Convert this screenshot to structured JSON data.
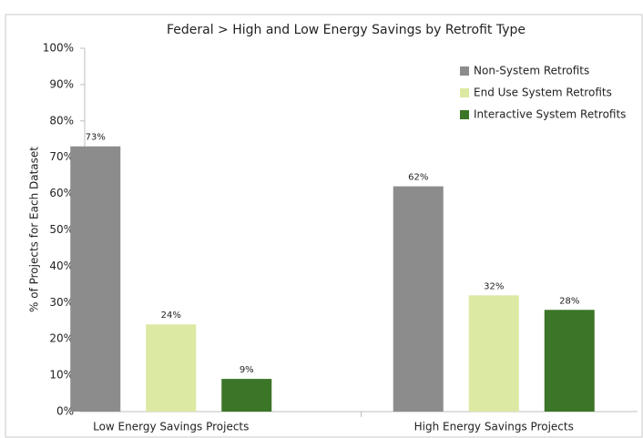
{
  "chart_data": {
    "type": "bar",
    "title": "Federal > High and Low Energy Savings by Retrofit Type",
    "y_label": "% of Projects for Each Dataset",
    "categories": [
      "Low Energy Savings Projects",
      "High Energy Savings Projects"
    ],
    "series": [
      {
        "name": "Non-System Retrofits",
        "color": "#8c8c8c",
        "values": [
          73,
          62
        ],
        "value_labels": [
          "73%",
          "62%"
        ]
      },
      {
        "name": "End Use System Retrofits",
        "color": "#dbe9a2",
        "values": [
          24,
          32
        ],
        "value_labels": [
          "24%",
          "32%"
        ]
      },
      {
        "name": "Interactive System Retrofits",
        "color": "#3b7527",
        "values": [
          9,
          28
        ],
        "value_labels": [
          "9%",
          "28%"
        ]
      }
    ],
    "ylim": [
      0,
      100
    ],
    "yticks": [
      {
        "value": 0,
        "label": "0%"
      },
      {
        "value": 10,
        "label": "10%"
      },
      {
        "value": 20,
        "label": "20%"
      },
      {
        "value": 30,
        "label": "30%"
      },
      {
        "value": 40,
        "label": "40%"
      },
      {
        "value": 50,
        "label": "50%"
      },
      {
        "value": 60,
        "label": "60%"
      },
      {
        "value": 70,
        "label": "70%"
      },
      {
        "value": 80,
        "label": "80%"
      },
      {
        "value": 90,
        "label": "90%"
      },
      {
        "value": 100,
        "label": "100%"
      }
    ],
    "grid": false,
    "legend": "upper right"
  }
}
